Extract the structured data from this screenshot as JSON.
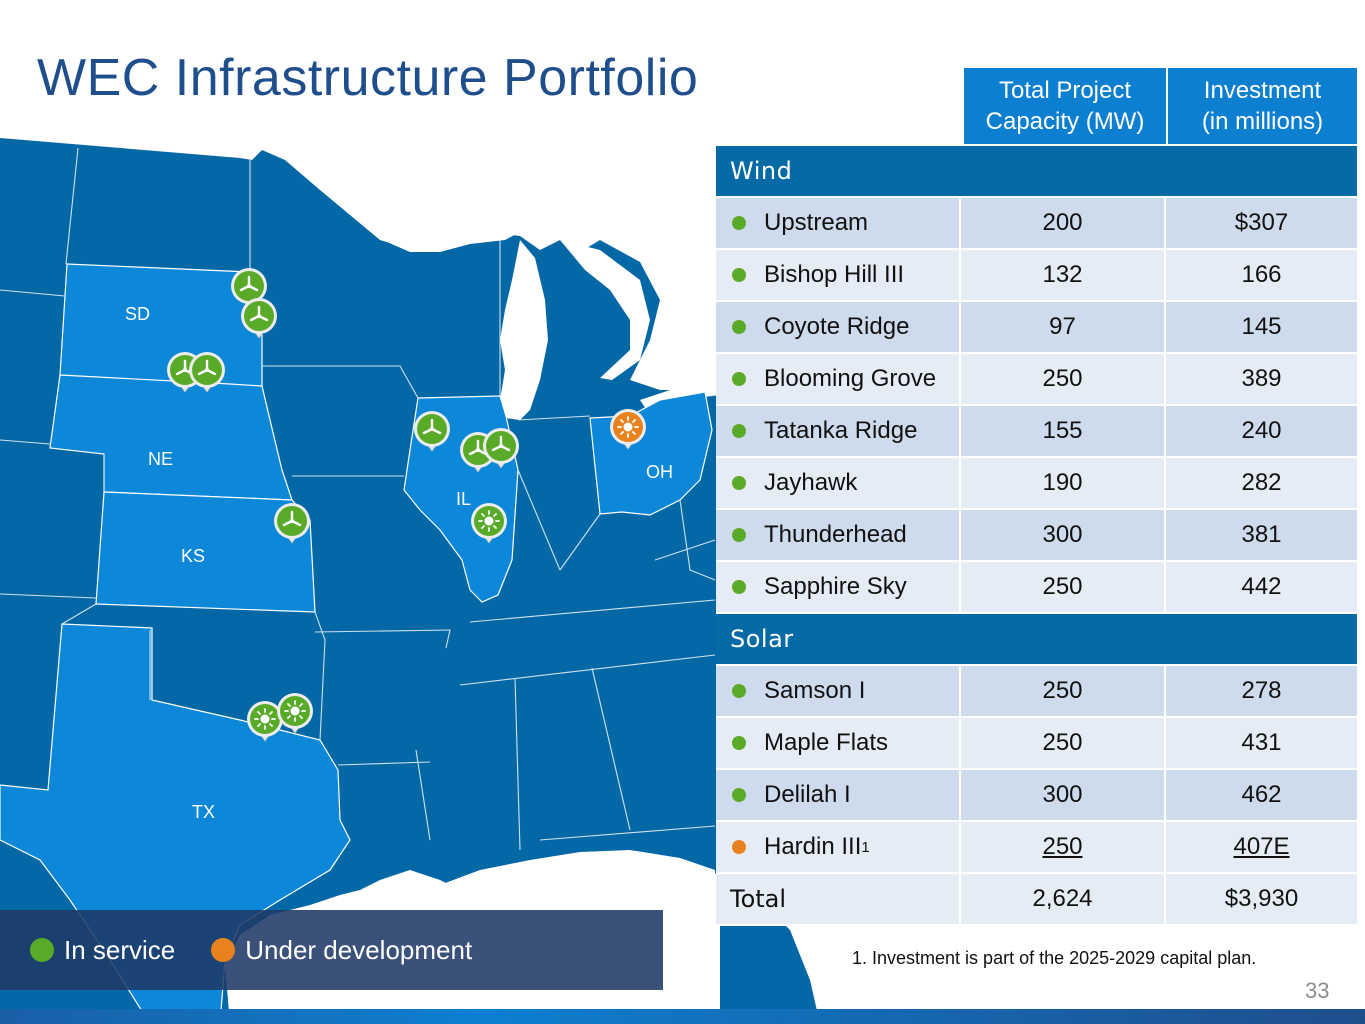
{
  "slide": {
    "title": "WEC Infrastructure Portfolio",
    "page_number": "33",
    "footnote": "1. Investment is part of the 2025-2029 capital plan."
  },
  "table": {
    "headers": {
      "capacity_line1": "Total Project",
      "capacity_line2": "Capacity (MW)",
      "investment_line1": "Investment",
      "investment_line2": "(in millions)"
    },
    "categories": {
      "wind": {
        "label": "Wind",
        "rows": [
          {
            "name": "Upstream",
            "mw": "200",
            "investment": "$307",
            "status": "in_service"
          },
          {
            "name": "Bishop Hill III",
            "mw": "132",
            "investment": "166",
            "status": "in_service"
          },
          {
            "name": "Coyote Ridge",
            "mw": "97",
            "investment": "145",
            "status": "in_service"
          },
          {
            "name": "Blooming Grove",
            "mw": "250",
            "investment": "389",
            "status": "in_service"
          },
          {
            "name": "Tatanka Ridge",
            "mw": "155",
            "investment": "240",
            "status": "in_service"
          },
          {
            "name": "Jayhawk",
            "mw": "190",
            "investment": "282",
            "status": "in_service"
          },
          {
            "name": "Thunderhead",
            "mw": "300",
            "investment": "381",
            "status": "in_service"
          },
          {
            "name": "Sapphire Sky",
            "mw": "250",
            "investment": "442",
            "status": "in_service"
          }
        ]
      },
      "solar": {
        "label": "Solar",
        "rows": [
          {
            "name": "Samson I",
            "mw": "250",
            "investment": "278",
            "status": "in_service"
          },
          {
            "name": "Maple Flats",
            "mw": "250",
            "investment": "431",
            "status": "in_service"
          },
          {
            "name": "Delilah I",
            "mw": "300",
            "investment": "462",
            "status": "in_service"
          },
          {
            "name": "Hardin III",
            "footnote_marker": "1",
            "mw": "250",
            "investment": "407E",
            "status": "under_development"
          }
        ]
      }
    },
    "total": {
      "label": "Total",
      "mw": "2,624",
      "investment": "$3,930"
    }
  },
  "map": {
    "state_labels": [
      "SD",
      "NE",
      "KS",
      "IL",
      "OH",
      "TX"
    ],
    "marker_icons": [
      "wind-turbine-icon",
      "sun-icon"
    ]
  },
  "legend": {
    "in_service": "In service",
    "under_development": "Under development"
  },
  "colors": {
    "in_service": "#5aaa2a",
    "under_development": "#e8821e",
    "dark_state": "#0568a6",
    "highlight_state": "#0d87d8",
    "header_blue": "#0d7fd1",
    "category_blue": "#056aa6",
    "title_blue": "#1f4e8c"
  }
}
